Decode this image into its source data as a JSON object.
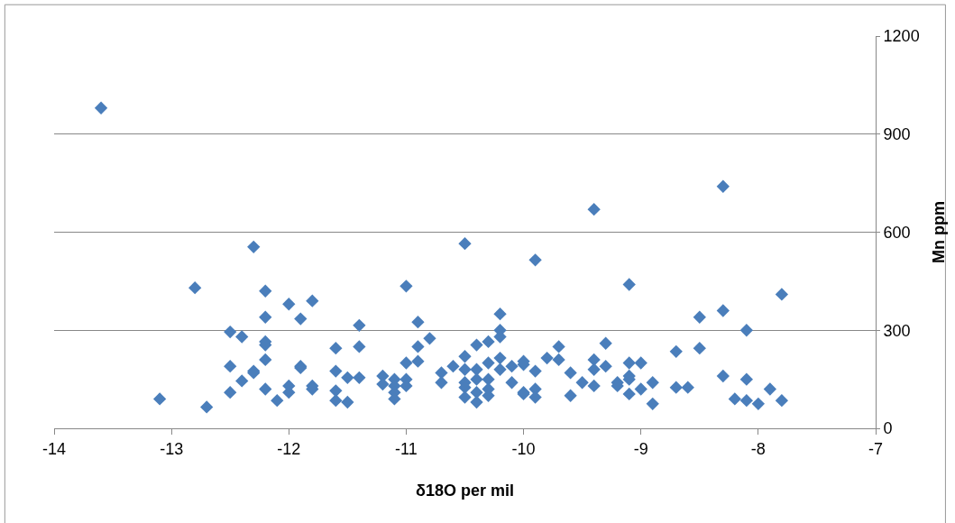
{
  "chart_data": {
    "type": "scatter",
    "xlabel": "δ18O per mil",
    "ylabel": "Mn ppm",
    "xlim": [
      -14,
      -7
    ],
    "xticks": [
      -14,
      -13,
      -12,
      -11,
      -10,
      -9,
      -8,
      -7
    ],
    "ylim": [
      0,
      1200
    ],
    "yticks": [
      0,
      300,
      600,
      900,
      1200
    ],
    "grid": "y",
    "marker": "diamond",
    "series": [
      {
        "color": "#4a7ebb",
        "x": [
          -13.6,
          -8.3,
          -9.4,
          -10.5,
          -12.3,
          -9.9,
          -12.8,
          -11.0,
          -9.1,
          -12.2,
          -7.8,
          -11.8,
          -12.0,
          -8.3,
          -10.2,
          -12.2,
          -11.9,
          -8.5,
          -10.9,
          -11.4,
          -8.1,
          -12.5,
          -10.2,
          -12.4,
          -10.8,
          -10.2,
          -9.3,
          -12.2,
          -12.2,
          -11.4,
          -10.9,
          -11.6,
          -8.5,
          -10.4,
          -10.3,
          -9.7,
          -8.7,
          -12.2,
          -12.5,
          -11.9,
          -11.9,
          -11.0,
          -10.9,
          -10.2,
          -10.5,
          -9.8,
          -9.4,
          -9.0,
          -9.1,
          -9.7,
          -10.0,
          -10.0,
          -12.3,
          -12.3,
          -11.6,
          -11.5,
          -11.4,
          -11.2,
          -11.1,
          -11.0,
          -10.7,
          -10.6,
          -10.5,
          -10.4,
          -10.3,
          -10.2,
          -10.1,
          -9.9,
          -9.6,
          -9.4,
          -9.3,
          -9.1,
          -8.3,
          -8.1,
          -12.4,
          -12.0,
          -11.8,
          -11.8,
          -11.2,
          -11.1,
          -11.0,
          -10.7,
          -10.5,
          -10.4,
          -10.3,
          -10.1,
          -9.5,
          -9.4,
          -9.2,
          -9.2,
          -9.1,
          -8.9,
          -8.7,
          -8.6,
          -12.5,
          -12.2,
          -12.0,
          -11.6,
          -11.1,
          -10.5,
          -10.4,
          -10.3,
          -9.9,
          -10.0,
          -9.0,
          -9.1,
          -7.9,
          -12.1,
          -11.6,
          -11.5,
          -11.1,
          -10.5,
          -10.4,
          -10.3,
          -10.0,
          -9.9,
          -9.6,
          -8.9,
          -8.2,
          -8.1,
          -8.0,
          -7.8,
          -13.1,
          -12.7
        ],
        "values": [
          980,
          740,
          670,
          565,
          555,
          515,
          430,
          435,
          440,
          420,
          410,
          390,
          380,
          360,
          350,
          340,
          335,
          340,
          325,
          315,
          300,
          295,
          300,
          280,
          275,
          280,
          260,
          265,
          255,
          250,
          250,
          245,
          245,
          255,
          265,
          250,
          235,
          210,
          190,
          190,
          185,
          200,
          205,
          215,
          220,
          215,
          210,
          200,
          200,
          210,
          195,
          205,
          175,
          170,
          175,
          155,
          155,
          160,
          150,
          150,
          170,
          190,
          180,
          180,
          200,
          180,
          190,
          175,
          170,
          180,
          190,
          160,
          160,
          150,
          145,
          130,
          130,
          120,
          135,
          130,
          130,
          140,
          140,
          150,
          150,
          140,
          140,
          130,
          140,
          130,
          150,
          140,
          125,
          125,
          110,
          120,
          110,
          115,
          110,
          125,
          110,
          120,
          120,
          110,
          120,
          105,
          120,
          85,
          85,
          80,
          90,
          95,
          80,
          100,
          105,
          95,
          100,
          75,
          90,
          85,
          75,
          85,
          90,
          65
        ]
      }
    ]
  }
}
